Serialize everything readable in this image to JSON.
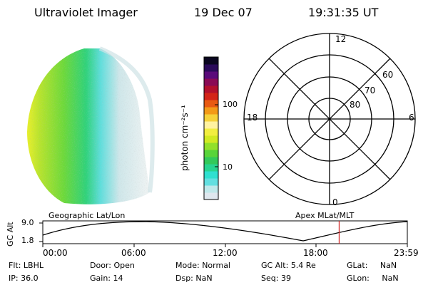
{
  "header": {
    "instrument": "Ultraviolet Imager",
    "date": "19 Dec 07",
    "time": "19:31:35 UT"
  },
  "colorbar": {
    "label": "photon cm⁻²s⁻¹",
    "ticks": [
      "100",
      "10"
    ],
    "colors": [
      "#dfe7ee",
      "#bfe8ea",
      "#63dfe0",
      "#2fe0d0",
      "#27d48f",
      "#32c95a",
      "#58d43a",
      "#92e02a",
      "#d2ea22",
      "#f2ee40",
      "#fff2a0",
      "#f6d23a",
      "#f39a18",
      "#e85a12",
      "#d32418",
      "#b2102d",
      "#8a0a55",
      "#5a0a7a",
      "#2a0a5a",
      "#0a0620"
    ]
  },
  "polar": {
    "mlt_labels": {
      "top": "12",
      "left": "18",
      "right": "6",
      "bottom": "0"
    },
    "lat_labels": [
      "60",
      "70",
      "80"
    ]
  },
  "timeline": {
    "axis_label": "GC Alt",
    "y_ticks": [
      "9.0",
      "1.8"
    ],
    "left_title": "Geographic Lat/Lon",
    "right_title": "Apex MLat/MLT",
    "x_ticks": [
      "00:00",
      "06:00",
      "12:00",
      "18:00",
      "23:59"
    ],
    "current_time_fraction": 0.813
  },
  "info": {
    "row1": [
      {
        "label": "Flt:",
        "value": "LBHL"
      },
      {
        "label": "Door:",
        "value": "Open"
      },
      {
        "label": "Mode:",
        "value": "Normal"
      },
      {
        "label": "GC Alt:",
        "value": "5.4 Re"
      },
      {
        "label": "GLat:",
        "value": "NaN"
      }
    ],
    "row2": [
      {
        "label": "IP:",
        "value": "36.0"
      },
      {
        "label": "Gain:",
        "value": "14"
      },
      {
        "label": "Dsp:",
        "value": "NaN"
      },
      {
        "label": "Seq:",
        "value": "39"
      },
      {
        "label": "GLon:",
        "value": "NaN"
      }
    ]
  }
}
